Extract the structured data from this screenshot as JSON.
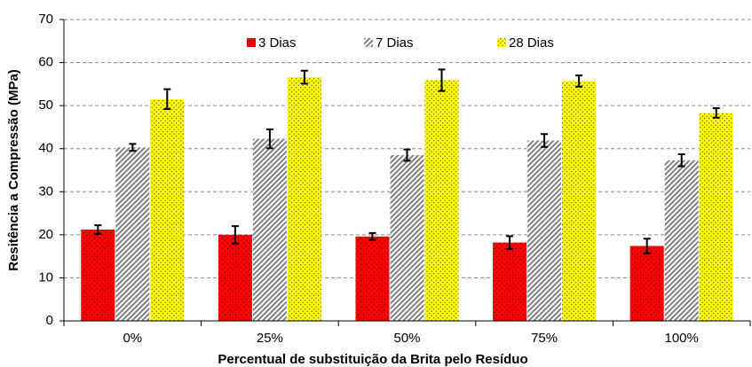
{
  "chart_data": {
    "type": "bar",
    "x_label": "Percentual de substituição da Brita pelo Resíduo",
    "y_label": "Resitência a Compressão (MPa)",
    "categories": [
      "0%",
      "25%",
      "50%",
      "75%",
      "100%"
    ],
    "series": [
      {
        "name": "3 Dias",
        "color": "#ff0000",
        "values": [
          21.2,
          20.0,
          19.6,
          18.2,
          17.4
        ],
        "errors": [
          1.0,
          2.0,
          0.8,
          1.5,
          1.7
        ]
      },
      {
        "name": "7 Dias",
        "color": "#808080",
        "values": [
          40.3,
          42.3,
          38.5,
          41.9,
          37.3
        ],
        "errors": [
          0.8,
          2.2,
          1.3,
          1.5,
          1.4
        ]
      },
      {
        "name": "28 Dias",
        "color": "#ffff00",
        "values": [
          51.5,
          56.6,
          55.9,
          55.7,
          48.3
        ],
        "errors": [
          2.3,
          1.5,
          2.5,
          1.3,
          1.1
        ]
      }
    ],
    "ylim": [
      0,
      70
    ],
    "yticks": [
      0,
      10,
      20,
      30,
      40,
      50,
      60,
      70
    ],
    "grid": true,
    "legend": "top"
  }
}
